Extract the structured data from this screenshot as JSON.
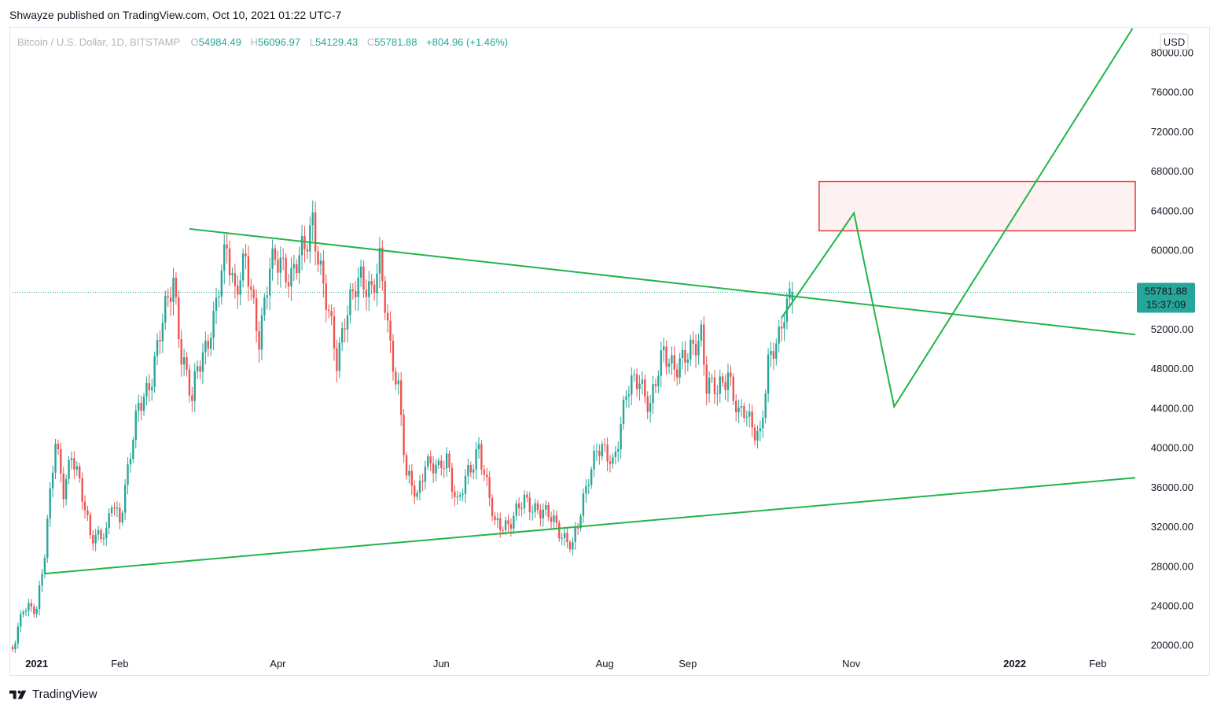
{
  "header": {
    "publisher_line": "Shwayze published on TradingView.com, Oct 10, 2021 01:22 UTC-7"
  },
  "legend": {
    "symbol": "Bitcoin / U.S. Dollar, 1D, BITSTAMP",
    "open_label": "O",
    "open": "54984.49",
    "high_label": "H",
    "high": "56096.97",
    "low_label": "L",
    "low": "54129.43",
    "close_label": "C",
    "close": "55781.88",
    "change": "+804.96 (+1.46%)"
  },
  "currency_button": "USD",
  "price_badge": {
    "price": "55781.88",
    "countdown": "15:37:09"
  },
  "footer": {
    "brand": "TradingView"
  },
  "colors": {
    "up": "#26a69a",
    "down": "#ef5350",
    "trendline": "#22b44a",
    "zone_border": "#e53935",
    "zone_fill": "#fdf1f1",
    "text_muted": "#b2b5be"
  },
  "chart_data": {
    "type": "candlestick",
    "symbol": "Bitcoin / U.S. Dollar",
    "interval": "1D",
    "exchange": "BITSTAMP",
    "x_range": [
      "2020-12-23",
      "2022-02-15"
    ],
    "ylim": [
      19500,
      82500
    ],
    "y_ticks": [
      20000,
      24000,
      28000,
      32000,
      36000,
      40000,
      44000,
      48000,
      52000,
      56000,
      60000,
      64000,
      68000,
      72000,
      76000,
      80000
    ],
    "x_ticks": [
      {
        "date": "2021-01-01",
        "label": "2021",
        "bold": true
      },
      {
        "date": "2021-02-01",
        "label": "Feb"
      },
      {
        "date": "2021-04-01",
        "label": "Apr"
      },
      {
        "date": "2021-06-01",
        "label": "Jun"
      },
      {
        "date": "2021-08-01",
        "label": "Aug"
      },
      {
        "date": "2021-09-01",
        "label": "Sep"
      },
      {
        "date": "2021-11-01",
        "label": "Nov"
      },
      {
        "date": "2022-01-01",
        "label": "2022",
        "bold": true
      },
      {
        "date": "2022-02-01",
        "label": "Feb"
      }
    ],
    "last_price": 55781.88,
    "price_path": [
      [
        "2020-12-23",
        19900
      ],
      [
        "2020-12-27",
        23500
      ],
      [
        "2021-01-01",
        24000
      ],
      [
        "2021-01-04",
        29500
      ],
      [
        "2021-01-08",
        40500
      ],
      [
        "2021-01-11",
        36000
      ],
      [
        "2021-01-14",
        39500
      ],
      [
        "2021-01-21",
        31500
      ],
      [
        "2021-01-27",
        31000
      ],
      [
        "2021-01-29",
        34500
      ],
      [
        "2021-02-01",
        33000
      ],
      [
        "2021-02-08",
        44000
      ],
      [
        "2021-02-13",
        47500
      ],
      [
        "2021-02-21",
        57500
      ],
      [
        "2021-02-24",
        49500
      ],
      [
        "2021-02-28",
        44500
      ],
      [
        "2021-03-02",
        48500
      ],
      [
        "2021-03-08",
        52500
      ],
      [
        "2021-03-13",
        61000
      ],
      [
        "2021-03-16",
        56000
      ],
      [
        "2021-03-20",
        58500
      ],
      [
        "2021-03-25",
        51500
      ],
      [
        "2021-03-29",
        58000
      ],
      [
        "2021-04-02",
        59000
      ],
      [
        "2021-04-06",
        57500
      ],
      [
        "2021-04-11",
        60000
      ],
      [
        "2021-04-14",
        63500
      ],
      [
        "2021-04-18",
        56000
      ],
      [
        "2021-04-23",
        49000
      ],
      [
        "2021-04-26",
        53500
      ],
      [
        "2021-05-02",
        57000
      ],
      [
        "2021-05-06",
        56500
      ],
      [
        "2021-05-09",
        58500
      ],
      [
        "2021-05-13",
        50000
      ],
      [
        "2021-05-16",
        46500
      ],
      [
        "2021-05-19",
        37000
      ],
      [
        "2021-05-23",
        35000
      ],
      [
        "2021-05-26",
        39000
      ],
      [
        "2021-05-31",
        37500
      ],
      [
        "2021-06-03",
        39000
      ],
      [
        "2021-06-07",
        34500
      ],
      [
        "2021-06-13",
        38500
      ],
      [
        "2021-06-15",
        40500
      ],
      [
        "2021-06-21",
        32000
      ],
      [
        "2021-06-26",
        32500
      ],
      [
        "2021-07-02",
        34500
      ],
      [
        "2021-07-07",
        34000
      ],
      [
        "2021-07-13",
        32500
      ],
      [
        "2021-07-20",
        30000
      ],
      [
        "2021-07-22",
        32000
      ],
      [
        "2021-07-26",
        37500
      ],
      [
        "2021-07-29",
        40000
      ],
      [
        "2021-08-04",
        38500
      ],
      [
        "2021-08-09",
        45500
      ],
      [
        "2021-08-14",
        47000
      ],
      [
        "2021-08-18",
        44500
      ],
      [
        "2021-08-23",
        49500
      ],
      [
        "2021-08-28",
        48500
      ],
      [
        "2021-09-01",
        49000
      ],
      [
        "2021-09-06",
        52000
      ],
      [
        "2021-09-08",
        46500
      ],
      [
        "2021-09-12",
        45500
      ],
      [
        "2021-09-16",
        48000
      ],
      [
        "2021-09-20",
        43000
      ],
      [
        "2021-09-22",
        43500
      ],
      [
        "2021-09-28",
        41500
      ],
      [
        "2021-10-01",
        48000
      ],
      [
        "2021-10-05",
        51500
      ],
      [
        "2021-10-07",
        54500
      ],
      [
        "2021-10-10",
        55781.88
      ]
    ],
    "trendlines": [
      {
        "name": "upper",
        "from": [
          "2021-02-27",
          62200
        ],
        "to": [
          "2022-02-15",
          51500
        ]
      },
      {
        "name": "lower",
        "from": [
          "2021-01-04",
          27300
        ],
        "to": [
          "2022-02-15",
          37000
        ]
      }
    ],
    "projection_path": [
      [
        "2021-10-06",
        53200
      ],
      [
        "2021-11-02",
        63800
      ],
      [
        "2021-11-17",
        44200
      ],
      [
        "2022-02-14",
        82500
      ]
    ],
    "resistance_zone": {
      "from": "2021-10-20",
      "to": "2022-02-15",
      "low": 62000,
      "high": 67000
    }
  }
}
